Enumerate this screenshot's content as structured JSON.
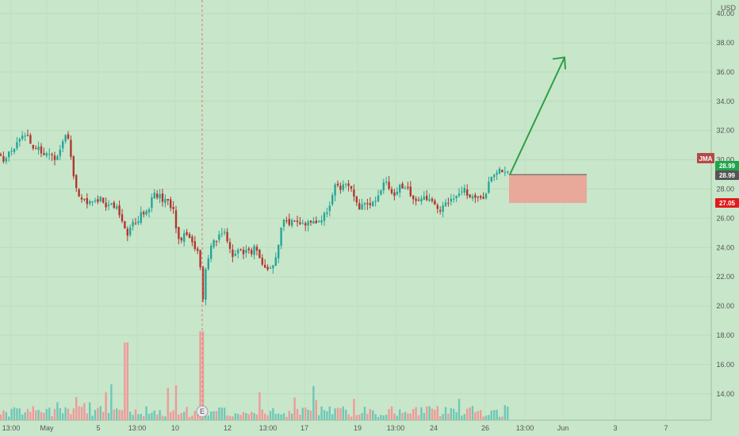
{
  "colors": {
    "background": "#c8e6c9",
    "up": "#26a69a",
    "down": "#b0372f",
    "volume_up": "#6fc7b8",
    "volume_down": "#ef9a9a",
    "earnings_line": "#e57373",
    "arrow": "#2e9f46",
    "box_fill": "#e8a99a",
    "box_stroke": "#555555",
    "tag_green": "#1fa64a",
    "tag_dark": "#555555",
    "tag_red": "#e01b1b",
    "tag_jma": "#b74a4a"
  },
  "currency": "USD",
  "markers": {
    "jma_label": "JMA",
    "earnings_label": "E",
    "last_price": "28.99",
    "jma_value": "28.99",
    "stop_price": "27.05"
  },
  "chart_data": {
    "type": "candlestick",
    "currency": "USD",
    "y_ticks": [
      "14.00",
      "16.00",
      "18.00",
      "20.00",
      "22.00",
      "24.00",
      "26.00",
      "28.00",
      "30.00",
      "32.00",
      "34.00",
      "36.00",
      "38.00",
      "40.00"
    ],
    "ylim": [
      12.2,
      40.4
    ],
    "x_ticks": [
      "13:00",
      "May",
      "5",
      "13:00",
      "10",
      "12",
      "13:00",
      "17",
      "19",
      "13:00",
      "24",
      "26",
      "13:00",
      "Jun",
      "3",
      "7"
    ],
    "trade_box": {
      "entry": 28.99,
      "stop": 27.05
    },
    "projection_target": 37.0,
    "close_path": [
      [
        0,
        30.3
      ],
      [
        7,
        29.8
      ],
      [
        12,
        30.8
      ],
      [
        17,
        30.5
      ],
      [
        22,
        31.2
      ],
      [
        28,
        31.6
      ],
      [
        33,
        31.8
      ],
      [
        38,
        31.2
      ],
      [
        43,
        30.6
      ],
      [
        48,
        30.8
      ],
      [
        53,
        30.2
      ],
      [
        58,
        30.4
      ],
      [
        63,
        30.6
      ],
      [
        68,
        30.1
      ],
      [
        73,
        30.4
      ],
      [
        78,
        31.2
      ],
      [
        83,
        31.6
      ],
      [
        87,
        31.3
      ],
      [
        90,
        30.0
      ],
      [
        94,
        28.6
      ],
      [
        98,
        27.8
      ],
      [
        103,
        27.2
      ],
      [
        108,
        27.1
      ],
      [
        113,
        27.0
      ],
      [
        118,
        27.3
      ],
      [
        123,
        27.1
      ],
      [
        128,
        27.6
      ],
      [
        133,
        26.8
      ],
      [
        138,
        27.1
      ],
      [
        143,
        26.9
      ],
      [
        148,
        26.7
      ],
      [
        153,
        26.1
      ],
      [
        157,
        25.4
      ],
      [
        160,
        24.7
      ],
      [
        163,
        25.3
      ],
      [
        167,
        26.0
      ],
      [
        170,
        25.5
      ],
      [
        174,
        25.9
      ],
      [
        178,
        26.4
      ],
      [
        182,
        26.1
      ],
      [
        186,
        26.5
      ],
      [
        190,
        27.0
      ],
      [
        194,
        27.8
      ],
      [
        198,
        27.4
      ],
      [
        202,
        27.5
      ],
      [
        206,
        27.1
      ],
      [
        210,
        27.3
      ],
      [
        214,
        26.8
      ],
      [
        218,
        26.7
      ],
      [
        221,
        25.6
      ],
      [
        224,
        24.6
      ],
      [
        228,
        24.3
      ],
      [
        232,
        24.9
      ],
      [
        236,
        25.0
      ],
      [
        240,
        24.6
      ],
      [
        244,
        24.1
      ],
      [
        248,
        23.7
      ],
      [
        252,
        23.4
      ],
      [
        255,
        19.5
      ],
      [
        258,
        22.2
      ],
      [
        262,
        23.1
      ],
      [
        266,
        24.0
      ],
      [
        270,
        24.4
      ],
      [
        274,
        24.6
      ],
      [
        278,
        24.9
      ],
      [
        282,
        25.2
      ],
      [
        286,
        24.4
      ],
      [
        290,
        23.9
      ],
      [
        294,
        23.3
      ],
      [
        298,
        23.6
      ],
      [
        302,
        23.9
      ],
      [
        306,
        23.5
      ],
      [
        310,
        23.7
      ],
      [
        314,
        23.9
      ],
      [
        318,
        23.6
      ],
      [
        322,
        24.2
      ],
      [
        326,
        23.3
      ],
      [
        330,
        22.9
      ],
      [
        334,
        22.7
      ],
      [
        338,
        22.3
      ],
      [
        342,
        22.7
      ],
      [
        346,
        22.9
      ],
      [
        350,
        23.5
      ],
      [
        353,
        25.2
      ],
      [
        357,
        25.7
      ],
      [
        361,
        25.9
      ],
      [
        365,
        25.6
      ],
      [
        369,
        25.8
      ],
      [
        373,
        25.9
      ],
      [
        377,
        25.5
      ],
      [
        381,
        25.8
      ],
      [
        385,
        25.6
      ],
      [
        389,
        25.7
      ],
      [
        393,
        25.9
      ],
      [
        397,
        25.6
      ],
      [
        401,
        25.8
      ],
      [
        405,
        26.0
      ],
      [
        409,
        26.2
      ],
      [
        413,
        26.4
      ],
      [
        417,
        27.2
      ],
      [
        421,
        28.1
      ],
      [
        425,
        28.4
      ],
      [
        429,
        28.0
      ],
      [
        433,
        28.2
      ],
      [
        437,
        28.4
      ],
      [
        441,
        28.2
      ],
      [
        445,
        27.6
      ],
      [
        449,
        27.4
      ],
      [
        453,
        26.6
      ],
      [
        457,
        26.9
      ],
      [
        461,
        27.2
      ],
      [
        465,
        26.9
      ],
      [
        469,
        27.1
      ],
      [
        473,
        27.3
      ],
      [
        477,
        27.5
      ],
      [
        481,
        28.0
      ],
      [
        485,
        28.5
      ],
      [
        489,
        28.2
      ],
      [
        493,
        27.8
      ],
      [
        497,
        27.6
      ],
      [
        501,
        27.9
      ],
      [
        505,
        28.2
      ],
      [
        509,
        28.0
      ],
      [
        513,
        28.4
      ],
      [
        517,
        27.6
      ],
      [
        521,
        27.2
      ],
      [
        525,
        27.1
      ],
      [
        529,
        27.3
      ],
      [
        533,
        27.4
      ],
      [
        537,
        27.2
      ],
      [
        541,
        27.5
      ],
      [
        545,
        27.3
      ],
      [
        549,
        27.0
      ],
      [
        553,
        26.5
      ],
      [
        557,
        26.6
      ],
      [
        561,
        26.9
      ],
      [
        565,
        27.1
      ],
      [
        569,
        27.3
      ],
      [
        573,
        27.5
      ],
      [
        577,
        27.7
      ],
      [
        581,
        27.9
      ],
      [
        585,
        28.1
      ],
      [
        589,
        27.4
      ],
      [
        593,
        27.3
      ],
      [
        597,
        27.4
      ],
      [
        601,
        27.5
      ],
      [
        605,
        27.3
      ],
      [
        609,
        27.2
      ],
      [
        613,
        27.8
      ],
      [
        617,
        28.5
      ],
      [
        621,
        28.8
      ],
      [
        625,
        29.0
      ],
      [
        629,
        29.2
      ],
      [
        633,
        29.3
      ],
      [
        637,
        29.2
      ],
      [
        641,
        28.99
      ]
    ]
  }
}
